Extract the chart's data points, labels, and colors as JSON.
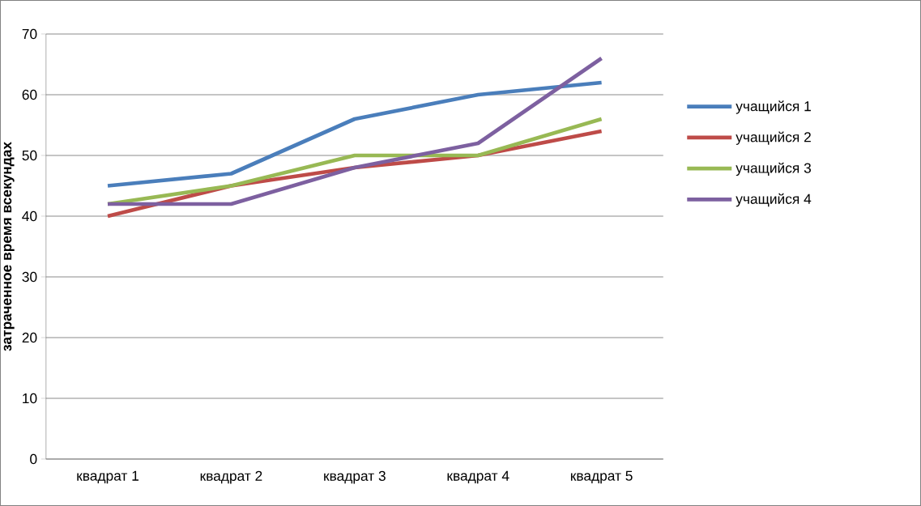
{
  "chart_data": {
    "type": "line",
    "ylabel": "затраченное время  всекундах",
    "categories": [
      "квадрат 1",
      "квадрат 2",
      "квадрат 3",
      "квадрат 4",
      "квадрат 5"
    ],
    "series": [
      {
        "name": "учащийся 1",
        "color": "#4a7ebb",
        "values": [
          45,
          47,
          56,
          60,
          62
        ]
      },
      {
        "name": "учащийся 2",
        "color": "#be4b48",
        "values": [
          40,
          45,
          48,
          50,
          54
        ]
      },
      {
        "name": "учащийся 3",
        "color": "#98b954",
        "values": [
          42,
          45,
          50,
          50,
          56
        ]
      },
      {
        "name": "учащийся 4",
        "color": "#7d60a0",
        "values": [
          42,
          42,
          48,
          52,
          66
        ]
      }
    ],
    "ylim": [
      0,
      70
    ],
    "yticks": [
      0,
      10,
      20,
      30,
      40,
      50,
      60,
      70
    ],
    "grid": "y",
    "legend": "right"
  }
}
